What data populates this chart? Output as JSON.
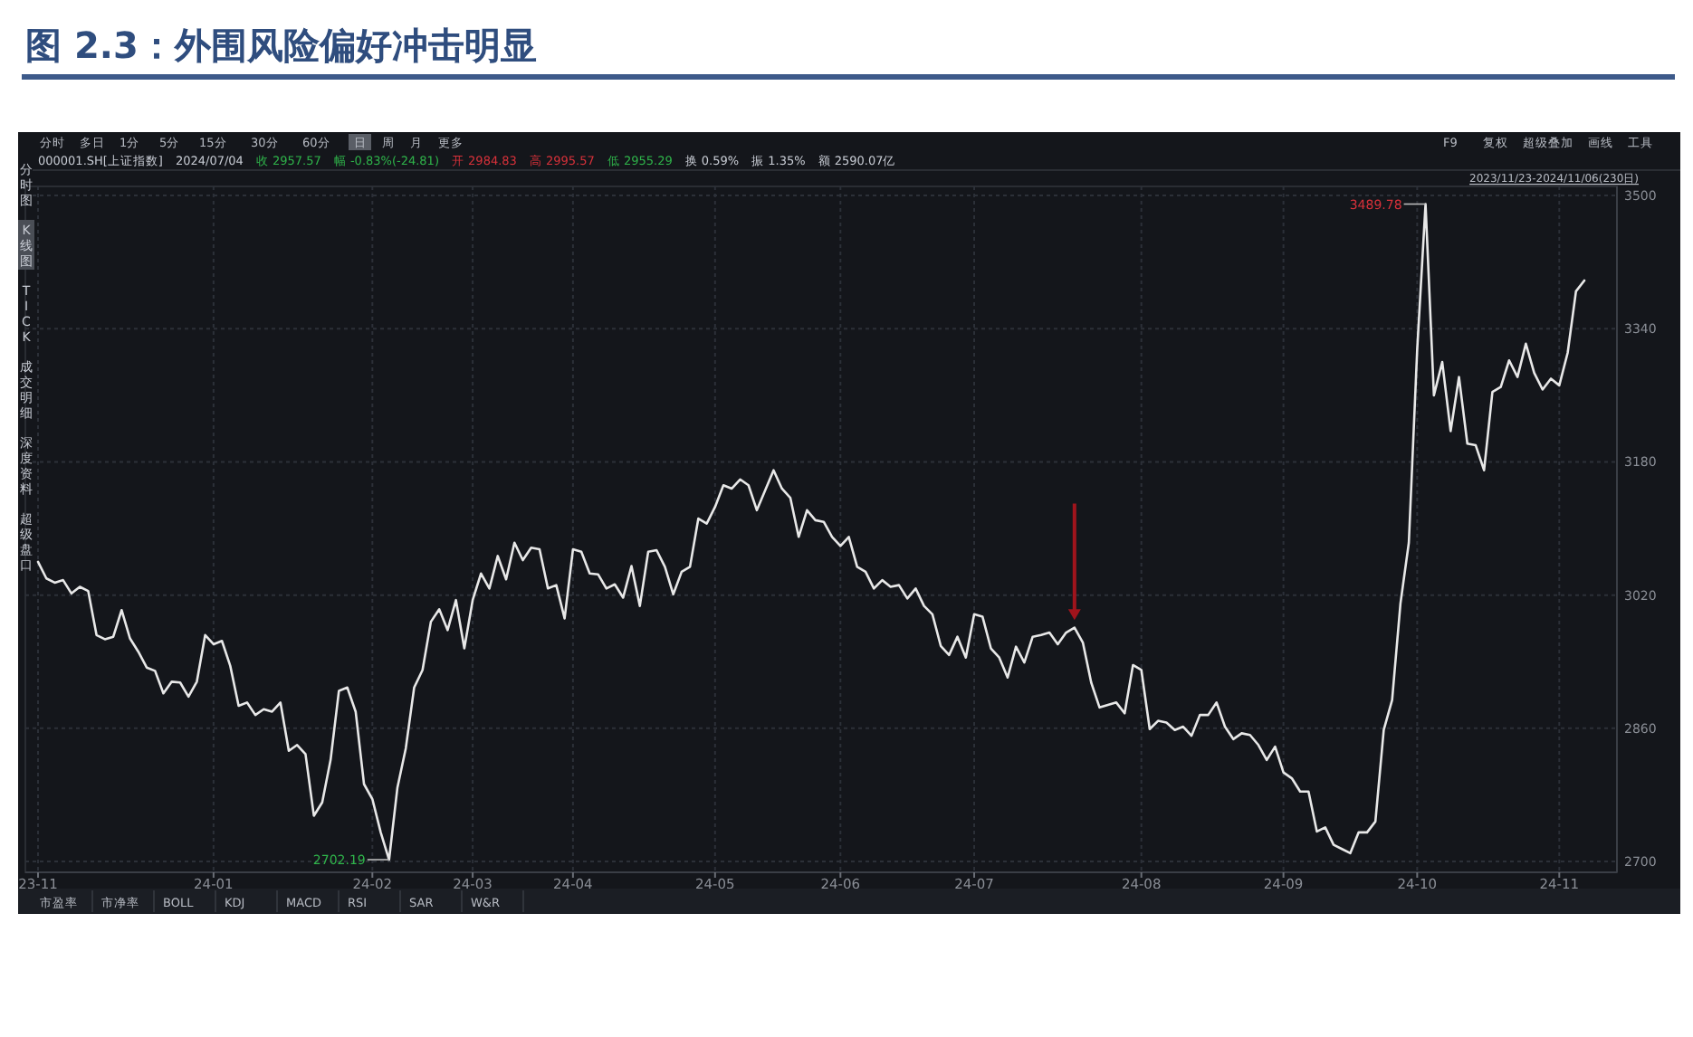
{
  "chart_data": {
    "type": "line",
    "title": "图 2.3：外围风险偏好冲击明显",
    "color": "#e8e8e8",
    "grid": true,
    "ylim": [
      2687,
      3511
    ],
    "categories": [
      "23-11",
      null,
      null,
      null,
      null,
      null,
      null,
      null,
      null,
      null,
      null,
      null,
      null,
      null,
      null,
      null,
      null,
      null,
      null,
      null,
      null,
      "24-01",
      null,
      null,
      null,
      null,
      null,
      null,
      null,
      null,
      null,
      null,
      null,
      null,
      null,
      null,
      null,
      null,
      null,
      null,
      "24-02",
      null,
      null,
      null,
      null,
      null,
      null,
      null,
      null,
      null,
      null,
      null,
      "24-03",
      null,
      null,
      null,
      null,
      null,
      null,
      null,
      null,
      null,
      null,
      null,
      "24-04",
      null,
      null,
      null,
      null,
      null,
      null,
      null,
      null,
      null,
      null,
      null,
      null,
      null,
      null,
      null,
      null,
      "24-05",
      null,
      null,
      null,
      null,
      null,
      null,
      null,
      null,
      null,
      null,
      null,
      null,
      null,
      null,
      "24-06",
      null,
      null,
      null,
      null,
      null,
      null,
      null,
      null,
      null,
      null,
      null,
      null,
      null,
      null,
      null,
      "24-07",
      null,
      null,
      null,
      null,
      null,
      null,
      null,
      null,
      null,
      null,
      null,
      null,
      null,
      null,
      null,
      null,
      null,
      null,
      null,
      "24-08",
      null,
      null,
      null,
      null,
      null,
      null,
      null,
      null,
      null,
      null,
      null,
      null,
      null,
      null,
      null,
      null,
      "24-09",
      null,
      null,
      null,
      null,
      null,
      null,
      null,
      null,
      null,
      null,
      null,
      null,
      null,
      null,
      null,
      "24-10",
      null,
      null,
      null,
      null,
      null,
      null,
      null,
      null,
      null,
      null,
      null,
      null,
      null,
      null,
      null,
      null,
      "24-11",
      null,
      null,
      null
    ],
    "yticks": [
      2700,
      2860,
      3020,
      3180,
      3340,
      3500
    ],
    "values": [
      3060,
      3040,
      3035,
      3038,
      3022,
      3030,
      3025,
      2972,
      2967,
      2970,
      3002,
      2968,
      2952,
      2933,
      2929,
      2902,
      2916,
      2915,
      2898,
      2916,
      2972,
      2961,
      2965,
      2935,
      2887,
      2891,
      2876,
      2883,
      2880,
      2891,
      2833,
      2840,
      2829,
      2755,
      2771,
      2822,
      2905,
      2909,
      2880,
      2793,
      2775,
      2735,
      2702.19,
      2789,
      2836,
      2909,
      2930,
      2988,
      3003,
      2978,
      3014,
      2956,
      3014,
      3046,
      3028,
      3067,
      3039,
      3083,
      3062,
      3077,
      3075,
      3028,
      3032,
      2992,
      3075,
      3072,
      3046,
      3045,
      3028,
      3033,
      3017,
      3055,
      3007,
      3072,
      3074,
      3054,
      3021,
      3048,
      3054,
      3112,
      3106,
      3126,
      3152,
      3148,
      3159,
      3152,
      3122,
      3146,
      3170,
      3148,
      3137,
      3090,
      3122,
      3110,
      3108,
      3090,
      3079,
      3090,
      3054,
      3048,
      3028,
      3038,
      3030,
      3032,
      3016,
      3028,
      3007,
      2997,
      2959,
      2948,
      2970,
      2945,
      2997,
      2994,
      2956,
      2945,
      2921,
      2958,
      2939,
      2970,
      2972,
      2975,
      2961,
      2975,
      2981,
      2963,
      2915,
      2885,
      2888,
      2891,
      2878,
      2936,
      2930,
      2859,
      2869,
      2867,
      2858,
      2862,
      2851,
      2876,
      2876,
      2891,
      2862,
      2847,
      2854,
      2852,
      2840,
      2822,
      2838,
      2807,
      2800,
      2784,
      2784,
      2736,
      2741,
      2720,
      2715,
      2710,
      2735,
      2735,
      2748,
      2858,
      2894,
      3010,
      3083,
      3315,
      3489.78,
      3260,
      3300,
      3217,
      3282,
      3202,
      3200,
      3170,
      3264,
      3270,
      3302,
      3282,
      3322,
      3287,
      3267,
      3280,
      3272,
      3311,
      3385,
      3398
    ],
    "annotations": [
      "2702.19",
      "3489.78",
      "分时",
      "多日",
      "1分",
      "5分",
      "15分",
      "30分",
      "60分",
      "日",
      "周",
      "月",
      "更多",
      "F9",
      "复权",
      "超级叠加",
      "画线",
      "工具",
      "000001.SH[上证指数]",
      "2024/07/04",
      "收 2957.57",
      "幅 -0.83%(-24.81)",
      "开 2984.83",
      "高 2995.57",
      "低 2955.29",
      "换 0.59%",
      "振 1.35%",
      "额 2590.07亿",
      "2023/11/23-2024/11/06(230日)",
      "分时图",
      "K线图",
      "TICK",
      "成交明细",
      "深度资料",
      "超级盘口",
      "市盈率",
      "市净率",
      "BOLL",
      "KDJ",
      "MACD",
      "RSI",
      "SAR",
      "W&R"
    ]
  }
}
